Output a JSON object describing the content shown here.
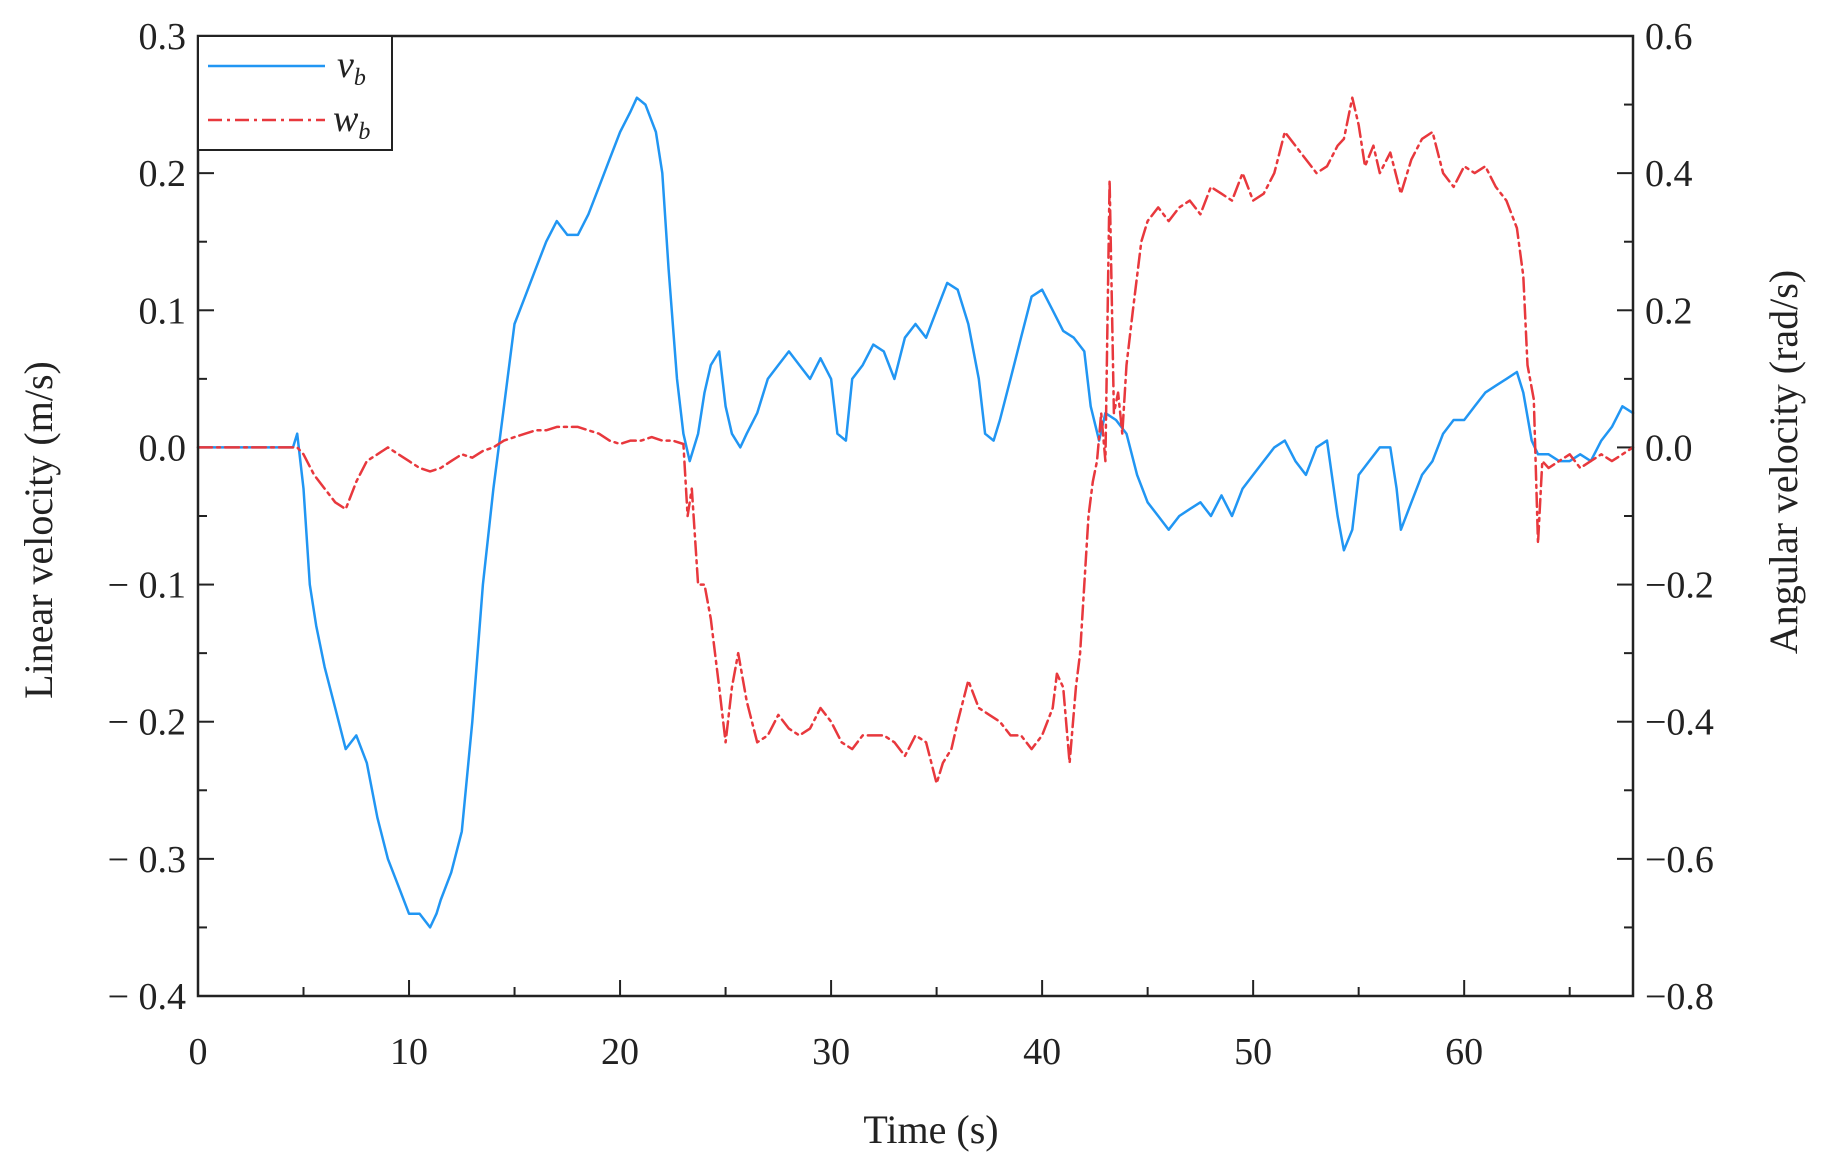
{
  "chart_data": {
    "type": "line",
    "xlabel": "Time (s)",
    "ylabel_left": "Linear velocity (m/s)",
    "ylabel_right": "Angular velocity (rad/s)",
    "xlim": [
      0,
      68
    ],
    "ylim_left": [
      -0.4,
      0.3
    ],
    "ylim_right": [
      -0.8,
      0.6
    ],
    "x_ticks": [
      0,
      10,
      20,
      30,
      40,
      50,
      60
    ],
    "x_tick_labels": [
      "0",
      "10",
      "20",
      "30",
      "40",
      "50",
      "60"
    ],
    "y_left_ticks": [
      0.3,
      0.2,
      0.1,
      0.0,
      -0.1,
      -0.2,
      -0.3,
      -0.4
    ],
    "y_left_tick_labels": [
      "0.3",
      "0.2",
      "0.1",
      "0.0",
      "− 0.1",
      "− 0.2",
      "− 0.3",
      "− 0.4"
    ],
    "y_right_ticks": [
      0.6,
      0.4,
      0.2,
      0.0,
      -0.2,
      -0.4,
      -0.6,
      -0.8
    ],
    "y_right_tick_labels": [
      "0.6",
      "0.4",
      "0.2",
      "0.0",
      "−0.2",
      "−0.4",
      "−0.6",
      "−0.8"
    ],
    "grid": false,
    "legend_position": "top-left",
    "series": [
      {
        "name": "v",
        "subscript": "b",
        "axis": "left",
        "color": "#2196F3",
        "style": "solid",
        "x": [
          0,
          4.5,
          4.7,
          5,
          5.3,
          5.6,
          6,
          6.5,
          7,
          7.5,
          8,
          8.5,
          9,
          9.5,
          10,
          10.5,
          11,
          11.3,
          11.5,
          12,
          12.5,
          13,
          13.5,
          14,
          14.5,
          15,
          15.5,
          16,
          16.5,
          17,
          17.5,
          18,
          18.5,
          19,
          19.5,
          20,
          20.5,
          20.8,
          21.2,
          21.7,
          22,
          22.3,
          22.7,
          23,
          23.3,
          23.7,
          24,
          24.3,
          24.7,
          25,
          25.3,
          25.7,
          26,
          26.5,
          27,
          27.5,
          28,
          28.5,
          29,
          29.5,
          30,
          30.3,
          30.7,
          31,
          31.5,
          32,
          32.5,
          33,
          33.5,
          34,
          34.5,
          35,
          35.5,
          36,
          36.5,
          37,
          37.3,
          37.7,
          38,
          38.5,
          39,
          39.5,
          40,
          40.5,
          41,
          41.5,
          42,
          42.3,
          42.7,
          43,
          43.5,
          44,
          44.5,
          45,
          45.5,
          46,
          46.5,
          47,
          47.5,
          48,
          48.5,
          49,
          49.5,
          50,
          50.5,
          51,
          51.5,
          52,
          52.5,
          53,
          53.5,
          54,
          54.3,
          54.7,
          55,
          55.5,
          56,
          56.5,
          56.8,
          57,
          57.5,
          58,
          58.5,
          59,
          59.5,
          60,
          60.5,
          61,
          61.5,
          62,
          62.5,
          62.8,
          63.2,
          63.5,
          64,
          64.5,
          65,
          65.5,
          66,
          66.5,
          67,
          67.5,
          68
        ],
        "values": [
          0,
          0,
          0.01,
          -0.03,
          -0.1,
          -0.13,
          -0.16,
          -0.19,
          -0.22,
          -0.21,
          -0.23,
          -0.27,
          -0.3,
          -0.32,
          -0.34,
          -0.34,
          -0.35,
          -0.34,
          -0.33,
          -0.31,
          -0.28,
          -0.2,
          -0.1,
          -0.03,
          0.03,
          0.09,
          0.11,
          0.13,
          0.15,
          0.165,
          0.155,
          0.155,
          0.17,
          0.19,
          0.21,
          0.23,
          0.245,
          0.255,
          0.25,
          0.23,
          0.2,
          0.13,
          0.05,
          0.01,
          -0.01,
          0.01,
          0.04,
          0.06,
          0.07,
          0.03,
          0.01,
          0,
          0.01,
          0.025,
          0.05,
          0.06,
          0.07,
          0.06,
          0.05,
          0.065,
          0.05,
          0.01,
          0.005,
          0.05,
          0.06,
          0.075,
          0.07,
          0.05,
          0.08,
          0.09,
          0.08,
          0.1,
          0.12,
          0.115,
          0.09,
          0.05,
          0.01,
          0.005,
          0.02,
          0.05,
          0.08,
          0.11,
          0.115,
          0.1,
          0.085,
          0.08,
          0.07,
          0.03,
          0.005,
          0.025,
          0.02,
          0.01,
          -0.02,
          -0.04,
          -0.05,
          -0.06,
          -0.05,
          -0.045,
          -0.04,
          -0.05,
          -0.035,
          -0.05,
          -0.03,
          -0.02,
          -0.01,
          0,
          0.005,
          -0.01,
          -0.02,
          0,
          0.005,
          -0.05,
          -0.075,
          -0.06,
          -0.02,
          -0.01,
          0,
          0,
          -0.03,
          -0.06,
          -0.04,
          -0.02,
          -0.01,
          0.01,
          0.02,
          0.02,
          0.03,
          0.04,
          0.045,
          0.05,
          0.055,
          0.04,
          0.005,
          -0.005,
          -0.005,
          -0.01,
          -0.01,
          -0.005,
          -0.01,
          0.005,
          0.015,
          0.03,
          0.025
        ]
      },
      {
        "name": "w",
        "subscript": "b",
        "axis": "right",
        "color": "#E8383D",
        "style": "dashdot",
        "x": [
          0,
          4.5,
          4.7,
          5,
          5.5,
          6,
          6.5,
          7,
          7.5,
          8,
          8.5,
          9,
          9.5,
          10,
          10.5,
          11,
          11.5,
          12,
          12.5,
          13,
          13.5,
          14,
          14.5,
          15,
          15.5,
          16,
          16.5,
          17,
          17.5,
          18,
          18.5,
          19,
          19.5,
          20,
          20.5,
          21,
          21.5,
          22,
          22.5,
          23,
          23.2,
          23.4,
          23.7,
          24,
          24.3,
          24.7,
          25,
          25.3,
          25.6,
          26,
          26.5,
          27,
          27.5,
          28,
          28.5,
          29,
          29.5,
          30,
          30.5,
          31,
          31.5,
          32,
          32.5,
          33,
          33.5,
          34,
          34.5,
          35,
          35.3,
          35.7,
          36,
          36.5,
          37,
          37.5,
          38,
          38.5,
          39,
          39.5,
          40,
          40.5,
          40.7,
          41,
          41.3,
          41.6,
          41.8,
          42,
          42.2,
          42.4,
          42.6,
          42.8,
          43,
          43.2,
          43.4,
          43.6,
          43.8,
          44,
          44.3,
          44.7,
          45,
          45.5,
          46,
          46.5,
          47,
          47.5,
          48,
          48.5,
          49,
          49.5,
          50,
          50.5,
          51,
          51.5,
          52,
          52.5,
          53,
          53.5,
          54,
          54.3,
          54.7,
          55,
          55.3,
          55.7,
          56,
          56.5,
          57,
          57.5,
          58,
          58.5,
          59,
          59.5,
          60,
          60.5,
          61,
          61.5,
          62,
          62.5,
          62.8,
          63,
          63.3,
          63.5,
          63.7,
          64,
          64.5,
          65,
          65.5,
          66,
          66.5,
          67,
          67.5,
          68
        ],
        "values": [
          0,
          0,
          0,
          -0.01,
          -0.04,
          -0.06,
          -0.08,
          -0.09,
          -0.05,
          -0.02,
          -0.01,
          0,
          -0.01,
          -0.02,
          -0.03,
          -0.035,
          -0.03,
          -0.02,
          -0.01,
          -0.015,
          -0.005,
          0,
          0.01,
          0.015,
          0.02,
          0.025,
          0.025,
          0.03,
          0.03,
          0.03,
          0.025,
          0.02,
          0.01,
          0.005,
          0.01,
          0.01,
          0.015,
          0.01,
          0.01,
          0.005,
          -0.1,
          -0.06,
          -0.2,
          -0.2,
          -0.25,
          -0.35,
          -0.43,
          -0.35,
          -0.3,
          -0.37,
          -0.43,
          -0.42,
          -0.39,
          -0.41,
          -0.42,
          -0.41,
          -0.38,
          -0.4,
          -0.43,
          -0.44,
          -0.42,
          -0.42,
          -0.42,
          -0.43,
          -0.45,
          -0.42,
          -0.43,
          -0.49,
          -0.46,
          -0.44,
          -0.4,
          -0.34,
          -0.38,
          -0.39,
          -0.4,
          -0.42,
          -0.42,
          -0.44,
          -0.42,
          -0.38,
          -0.33,
          -0.35,
          -0.46,
          -0.35,
          -0.3,
          -0.2,
          -0.1,
          -0.05,
          -0.02,
          0.05,
          -0.02,
          0.39,
          0.05,
          0.08,
          0.02,
          0.12,
          0.2,
          0.3,
          0.33,
          0.35,
          0.33,
          0.35,
          0.36,
          0.34,
          0.38,
          0.37,
          0.36,
          0.4,
          0.36,
          0.37,
          0.4,
          0.46,
          0.44,
          0.42,
          0.4,
          0.41,
          0.44,
          0.45,
          0.51,
          0.47,
          0.41,
          0.44,
          0.4,
          0.43,
          0.37,
          0.42,
          0.45,
          0.46,
          0.4,
          0.38,
          0.41,
          0.4,
          0.41,
          0.38,
          0.36,
          0.32,
          0.25,
          0.12,
          0.07,
          -0.14,
          -0.02,
          -0.03,
          -0.02,
          -0.01,
          -0.03,
          -0.02,
          -0.01,
          -0.02,
          -0.01,
          0
        ]
      }
    ]
  }
}
